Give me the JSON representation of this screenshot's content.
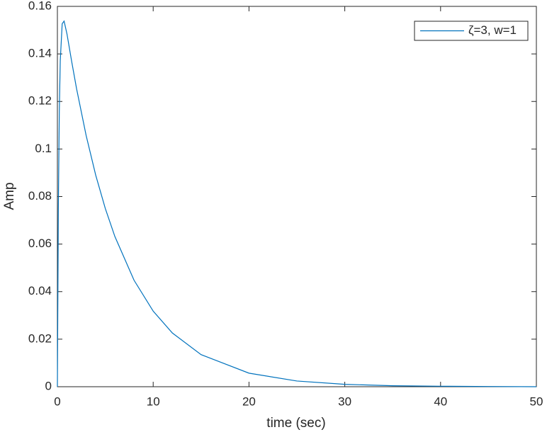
{
  "chart_data": {
    "type": "line",
    "xlabel": "time (sec)",
    "ylabel": "Amp",
    "x": [
      0,
      0.1,
      0.2,
      0.3,
      0.5,
      0.7,
      1,
      1.5,
      2,
      3,
      4,
      5,
      6,
      8,
      10,
      12,
      15,
      20,
      25,
      30,
      35,
      40,
      45,
      50
    ],
    "series": [
      {
        "name": "ζ=3, w=1",
        "color": "#0072bd",
        "values": [
          0,
          0.0751,
          0.1157,
          0.1371,
          0.1527,
          0.1538,
          0.1484,
          0.1366,
          0.1254,
          0.1057,
          0.089,
          0.075,
          0.0632,
          0.0448,
          0.0318,
          0.0226,
          0.0135,
          0.0057,
          0.0024,
          0.001,
          0.0004,
          0.0002,
          0.0001,
          0
        ]
      }
    ],
    "xlim": [
      0,
      50
    ],
    "ylim": [
      0,
      0.16
    ],
    "xticks": [
      0,
      10,
      20,
      30,
      40,
      50
    ],
    "yticks": [
      0,
      0.02,
      0.04,
      0.06,
      0.08,
      0.1,
      0.12,
      0.14,
      0.16
    ],
    "legend": "top-right"
  }
}
